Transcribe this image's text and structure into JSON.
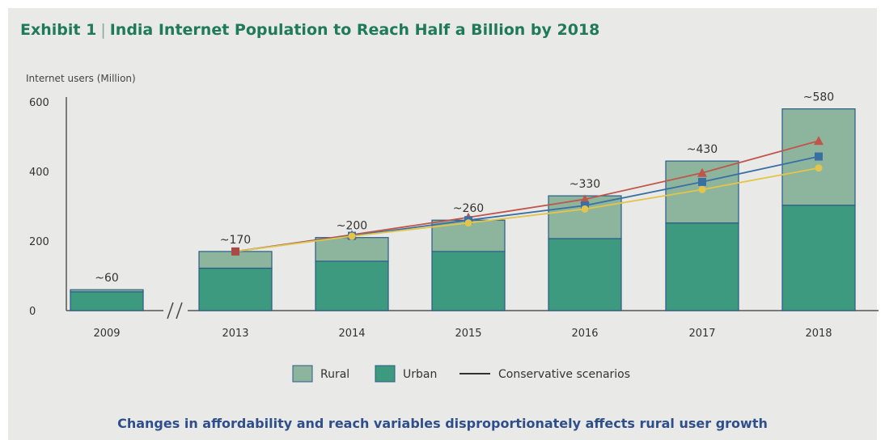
{
  "header": {
    "exhibit": "Exhibit 1",
    "title_text": "India Internet Population to Reach Half a Billion by 2018"
  },
  "caption": "Changes in affordability and reach variables disproportionately affects rural user growth",
  "chart_data": {
    "type": "bar",
    "stacked": true,
    "title": "Exhibit 1 | India Internet Population to Reach Half a Billion by 2018",
    "ylabel": "Internet users (Million)",
    "xlabel": "",
    "ylim": [
      0,
      600
    ],
    "yticks": [
      0,
      200,
      400,
      600
    ],
    "grid": false,
    "axis_break_between": [
      "2009",
      "2013"
    ],
    "categories": [
      "2009",
      "2013",
      "2014",
      "2015",
      "2016",
      "2017",
      "2018"
    ],
    "series": [
      {
        "name": "Urban",
        "color": "#3d9a7e",
        "values": [
          54,
          122,
          142,
          170,
          207,
          252,
          303
        ]
      },
      {
        "name": "Rural",
        "color": "#8db59e",
        "values": [
          6,
          48,
          68,
          90,
          123,
          178,
          277
        ]
      }
    ],
    "totals_labels": [
      "~60",
      "~170",
      "~200",
      "~260",
      "~330",
      "~430",
      "~580"
    ],
    "scenario_lines": {
      "legend_label": "Conservative scenarios",
      "series": [
        {
          "color": "#c0554a",
          "marker": "triangle",
          "x": [
            "2013",
            "2014",
            "2015",
            "2016",
            "2017",
            "2018"
          ],
          "values": [
            170,
            218,
            268,
            320,
            396,
            488
          ]
        },
        {
          "color": "#3a6fa4",
          "marker": "square",
          "x": [
            "2013",
            "2014",
            "2015",
            "2016",
            "2017",
            "2018"
          ],
          "values": [
            170,
            215,
            260,
            302,
            370,
            443
          ]
        },
        {
          "color": "#e2c54a",
          "marker": "circle",
          "x": [
            "2013",
            "2014",
            "2015",
            "2016",
            "2017",
            "2018"
          ],
          "values": [
            170,
            214,
            252,
            292,
            348,
            410
          ]
        }
      ]
    },
    "legend": {
      "position": "bottom-center",
      "items": [
        "Rural",
        "Urban",
        "Conservative scenarios"
      ]
    }
  }
}
